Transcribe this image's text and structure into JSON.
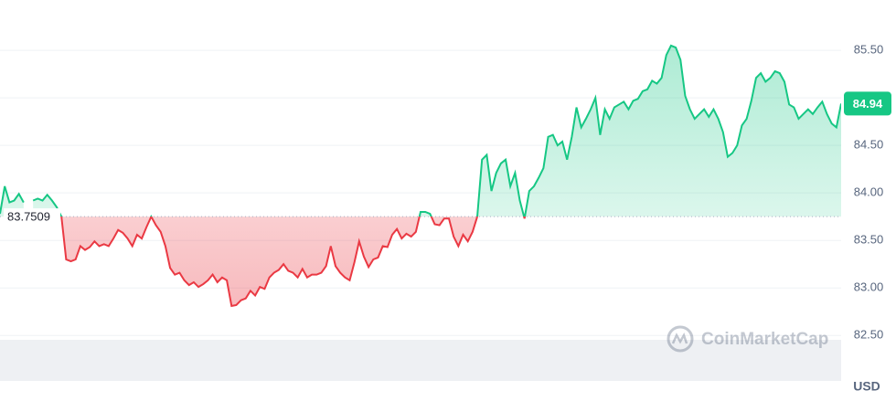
{
  "chart_data": {
    "type": "line",
    "values": [
      83.78,
      84.07,
      83.9,
      83.92,
      83.99,
      83.9,
      null,
      83.92,
      83.94,
      83.92,
      83.98,
      83.92,
      83.85,
      83.75,
      83.3,
      83.28,
      83.3,
      83.44,
      83.4,
      83.43,
      83.49,
      83.44,
      83.46,
      83.44,
      83.52,
      83.61,
      83.58,
      83.52,
      83.44,
      83.56,
      83.52,
      83.64,
      83.75,
      83.66,
      83.59,
      83.44,
      83.21,
      83.14,
      83.16,
      83.08,
      83.03,
      83.06,
      83.01,
      83.04,
      83.08,
      83.14,
      83.06,
      83.11,
      83.08,
      82.81,
      82.82,
      82.87,
      82.89,
      82.97,
      82.92,
      83.01,
      82.99,
      83.11,
      83.16,
      83.19,
      83.25,
      83.18,
      83.16,
      83.11,
      83.2,
      83.11,
      83.14,
      83.14,
      83.16,
      83.23,
      83.44,
      83.23,
      83.16,
      83.11,
      83.08,
      83.27,
      83.49,
      83.33,
      83.22,
      83.3,
      83.32,
      83.44,
      83.43,
      83.56,
      83.62,
      83.52,
      83.57,
      83.54,
      83.59,
      83.8,
      83.8,
      83.78,
      83.67,
      83.66,
      83.73,
      83.73,
      83.54,
      83.44,
      83.56,
      83.49,
      83.59,
      83.75,
      84.35,
      84.4,
      84.02,
      84.21,
      84.31,
      84.35,
      84.07,
      84.21,
      83.92,
      83.73,
      84.02,
      84.07,
      84.16,
      84.26,
      84.59,
      84.61,
      84.5,
      84.54,
      84.35,
      84.59,
      84.9,
      84.69,
      84.78,
      84.88,
      85.0,
      84.61,
      84.88,
      84.78,
      84.9,
      84.93,
      84.96,
      84.88,
      84.97,
      84.99,
      85.07,
      85.09,
      85.18,
      85.15,
      85.21,
      85.45,
      85.55,
      85.53,
      85.4,
      85.02,
      84.88,
      84.78,
      84.83,
      84.88,
      84.8,
      84.88,
      84.78,
      84.64,
      84.38,
      84.42,
      84.5,
      84.71,
      84.78,
      84.97,
      85.21,
      85.26,
      85.17,
      85.21,
      85.28,
      85.26,
      85.17,
      84.93,
      84.9,
      84.78,
      84.83,
      84.88,
      84.83,
      84.9,
      84.96,
      84.83,
      84.73,
      84.69,
      84.94
    ],
    "baseline": 83.7509,
    "current_price": 84.94,
    "currency": "USD",
    "watermark": "CoinMarketCap",
    "up_color": "#16c784",
    "down_color": "#ea3943",
    "ylim": [
      81.81,
      86.03
    ],
    "yticks": [
      {
        "value": 82.5,
        "label": "82.50"
      },
      {
        "value": 83,
        "label": "83.00"
      },
      {
        "value": 83.5,
        "label": "83.50"
      },
      {
        "value": 84,
        "label": "84.00"
      },
      {
        "value": 84.5,
        "label": "84.50"
      },
      {
        "value": 85,
        "label": "85.00"
      },
      {
        "value": 85.5,
        "label": "85.50"
      }
    ],
    "grid": true
  }
}
